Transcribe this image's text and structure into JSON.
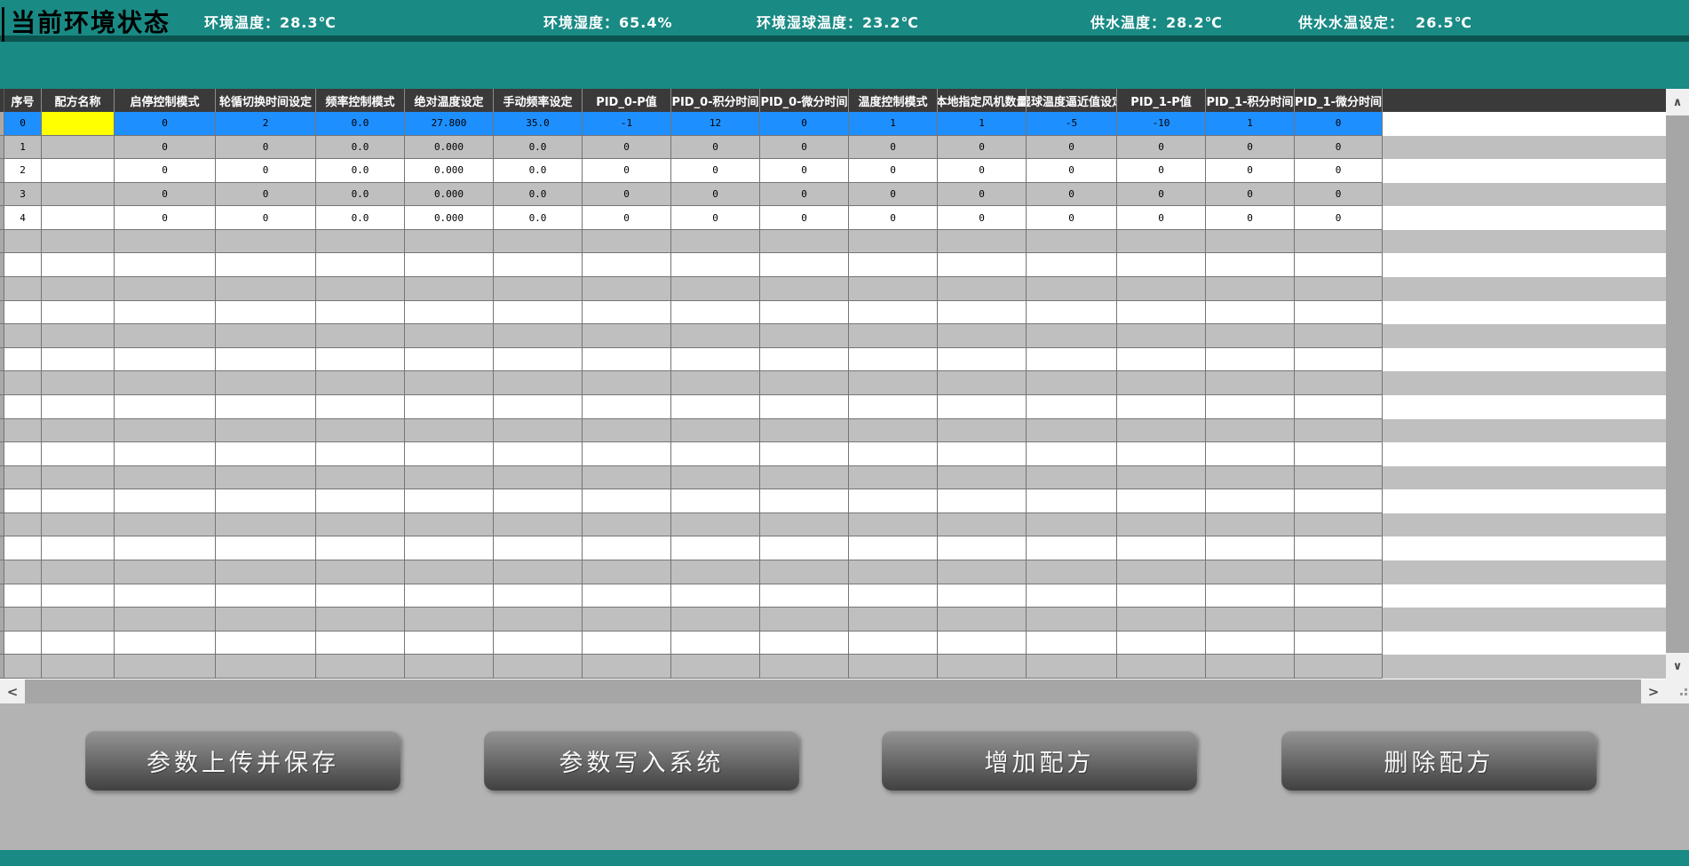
{
  "top_bar": {
    "title": "当前环境状态",
    "stats": [
      "环境温度：28.3℃",
      "环境湿度：65.4%",
      "环境湿球温度：23.2℃",
      "供水温度：28.2℃",
      "供水水温设定：  26.5℃"
    ]
  },
  "table": {
    "columns": [
      "序号",
      "配方名称",
      "启停控制模式",
      "轮循切换时间设定",
      "频率控制模式",
      "绝对温度设定",
      "手动频率设定",
      "PID_0-P值",
      "PID_0-积分时间",
      "PID_0-微分时间",
      "温度控制模式",
      "本地指定风机数量",
      "湿球温度逼近值设定",
      "PID_1-P值",
      "PID_1-积分时间",
      "PID_1-微分时间"
    ],
    "rows": [
      [
        "0",
        "",
        "0",
        "2",
        "0.0",
        "27.800",
        "35.0",
        "-1",
        "12",
        "0",
        "1",
        "1",
        "-5",
        "-10",
        "1",
        "0"
      ],
      [
        "1",
        "",
        "0",
        "0",
        "0.0",
        "0.000",
        "0.0",
        "0",
        "0",
        "0",
        "0",
        "0",
        "0",
        "0",
        "0",
        "0"
      ],
      [
        "2",
        "",
        "0",
        "0",
        "0.0",
        "0.000",
        "0.0",
        "0",
        "0",
        "0",
        "0",
        "0",
        "0",
        "0",
        "0",
        "0"
      ],
      [
        "3",
        "",
        "0",
        "0",
        "0.0",
        "0.000",
        "0.0",
        "0",
        "0",
        "0",
        "0",
        "0",
        "0",
        "0",
        "0",
        "0"
      ],
      [
        "4",
        "",
        "0",
        "0",
        "0.0",
        "0.000",
        "0.0",
        "0",
        "0",
        "0",
        "0",
        "0",
        "0",
        "0",
        "0",
        "0"
      ]
    ],
    "selection": {
      "row_index": 0,
      "selected_cell_column": "配方名称"
    }
  },
  "buttons": [
    "参数上传并保存",
    "参数写入系统",
    "增加配方",
    "删除配方"
  ],
  "icons": {
    "scroll_up": "∧",
    "scroll_down": "∨",
    "scroll_left": "<",
    "scroll_right": ">"
  },
  "colors": {
    "teal": "#198a84",
    "teal_dark": "#0b5450",
    "grid_header_bg": "#3a3a3a",
    "selected_row": "#1e8fff",
    "selected_cell": "#ffff00",
    "row_stripe": "#bfbfbf",
    "panel_bg": "#b3b3b3"
  }
}
